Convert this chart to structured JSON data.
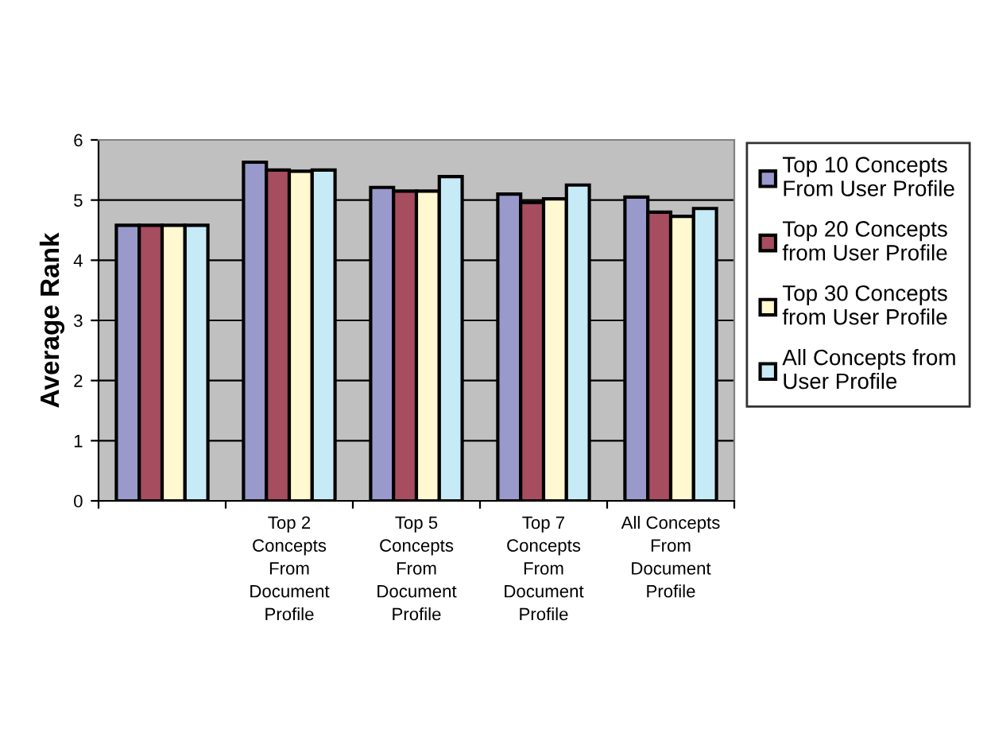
{
  "chart_data": {
    "type": "bar",
    "ylabel": "Average Rank",
    "categories": [
      null,
      "Top 2\nConcepts\nFrom\nDocument\nProfile",
      "Top 5\nConcepts\nFrom\nDocument\nProfile",
      "Top 7\nConcepts\nFrom\nDocument\nProfile",
      "All Concepts\nFrom\nDocument\nProfile"
    ],
    "series": [
      {
        "name": "Top 10 Concepts\nFrom User Profile",
        "color": "#9999cc",
        "values": [
          4.58,
          5.63,
          5.21,
          5.1,
          5.05
        ]
      },
      {
        "name": "Top 20 Concepts\nfrom User Profile",
        "color": "#a64d60",
        "values": [
          4.58,
          5.5,
          5.15,
          4.96,
          4.8
        ]
      },
      {
        "name": "Top 30 Concepts\nfrom User Profile",
        "color": "#fff8d0",
        "values": [
          4.58,
          5.48,
          5.15,
          5.02,
          4.73
        ]
      },
      {
        "name": "All Concepts from\nUser Profile",
        "color": "#c6ebf7",
        "values": [
          4.58,
          5.5,
          5.39,
          5.25,
          4.86
        ]
      }
    ],
    "ylim": [
      0,
      6
    ],
    "yticks": [
      0,
      1,
      2,
      3,
      4,
      5,
      6
    ],
    "grid": "y",
    "legend": "right"
  }
}
